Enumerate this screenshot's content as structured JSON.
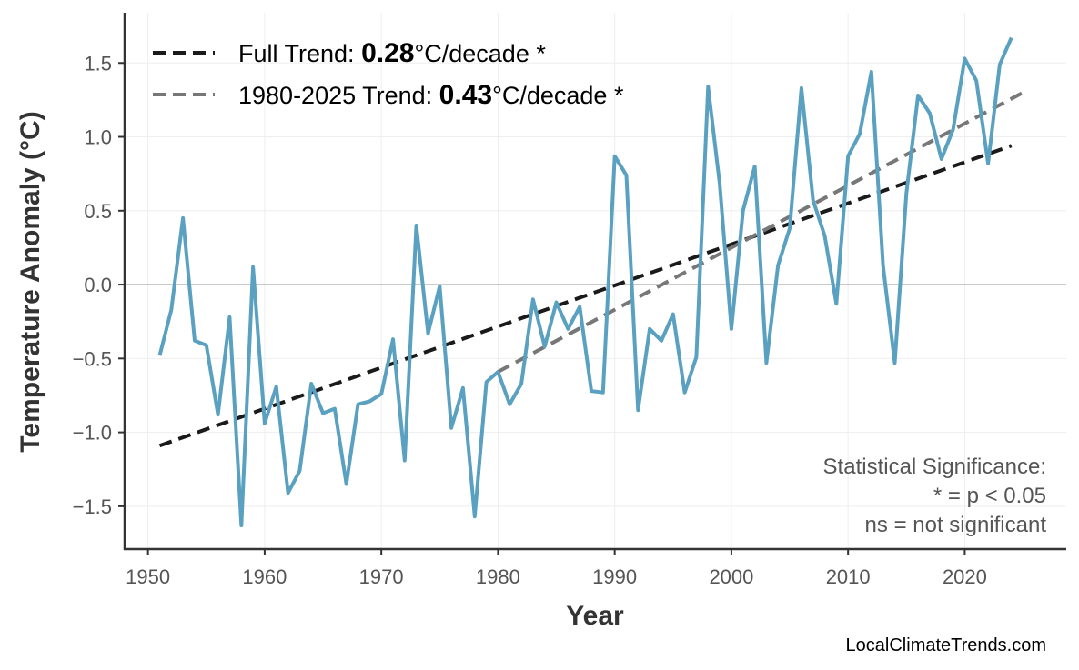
{
  "chart_data": {
    "type": "line",
    "title": "",
    "xlabel": "Year",
    "ylabel": "Temperature Anomaly (°C)",
    "xlim": [
      1948,
      2028.7
    ],
    "ylim": [
      -1.79,
      1.84
    ],
    "grid": true,
    "x_ticks": [
      1950,
      1960,
      1970,
      1980,
      1990,
      2000,
      2010,
      2020
    ],
    "y_ticks": [
      -1.5,
      -1.0,
      -0.5,
      0.0,
      0.5,
      1.0,
      1.5
    ],
    "y_tick_labels": [
      "−1.5",
      "−1.0",
      "−0.5",
      "0.0",
      "0.5",
      "1.0",
      "1.5"
    ],
    "series": [
      {
        "color": "#5aa0c0",
        "x": [
          1951,
          1952,
          1953,
          1954,
          1955,
          1956,
          1957,
          1958,
          1959,
          1960,
          1961,
          1962,
          1963,
          1964,
          1965,
          1966,
          1967,
          1968,
          1969,
          1970,
          1971,
          1972,
          1973,
          1974,
          1975,
          1976,
          1977,
          1978,
          1979,
          1980,
          1981,
          1982,
          1983,
          1984,
          1985,
          1986,
          1987,
          1988,
          1989,
          1990,
          1991,
          1992,
          1993,
          1994,
          1995,
          1996,
          1997,
          1998,
          1999,
          2000,
          2001,
          2002,
          2003,
          2004,
          2005,
          2006,
          2007,
          2008,
          2009,
          2010,
          2011,
          2012,
          2013,
          2014,
          2015,
          2016,
          2017,
          2018,
          2019,
          2020,
          2021,
          2022,
          2023,
          2024
        ],
        "values": [
          -0.48,
          -0.17,
          0.45,
          -0.38,
          -0.41,
          -0.88,
          -0.22,
          -1.63,
          0.12,
          -0.94,
          -0.69,
          -1.41,
          -1.26,
          -0.67,
          -0.87,
          -0.84,
          -1.35,
          -0.81,
          -0.79,
          -0.74,
          -0.37,
          -1.19,
          0.4,
          -0.33,
          -0.01,
          -0.97,
          -0.7,
          -1.57,
          -0.66,
          -0.59,
          -0.81,
          -0.67,
          -0.1,
          -0.42,
          -0.12,
          -0.3,
          -0.15,
          -0.72,
          -0.73,
          0.87,
          0.74,
          -0.85,
          -0.3,
          -0.38,
          -0.2,
          -0.73,
          -0.49,
          1.34,
          0.68,
          -0.3,
          0.5,
          0.8,
          -0.53,
          0.13,
          0.38,
          1.33,
          0.57,
          0.33,
          -0.13,
          0.87,
          1.02,
          1.44,
          0.13,
          -0.53,
          0.62,
          1.28,
          1.16,
          0.85,
          1.05,
          1.53,
          1.38,
          0.82,
          1.49,
          1.67
        ]
      }
    ],
    "trends": [
      {
        "label_prefix": "Full Trend: ",
        "value": "0.28",
        "label_suffix": "°C/decade *",
        "color": "#1a1a1a",
        "x": [
          1951,
          2024
        ],
        "y": [
          -1.09,
          0.94
        ]
      },
      {
        "label_prefix": "1980-2025 Trend: ",
        "value": "0.43",
        "label_suffix": "°C/decade *",
        "color": "#777777",
        "x": [
          1980,
          2025
        ],
        "y": [
          -0.59,
          1.3
        ]
      }
    ],
    "legend_position": "top-left",
    "annotation": [
      "Statistical Significance:",
      "* = p < 0.05",
      "ns = not significant"
    ]
  },
  "credit": "LocalClimateTrends.com"
}
